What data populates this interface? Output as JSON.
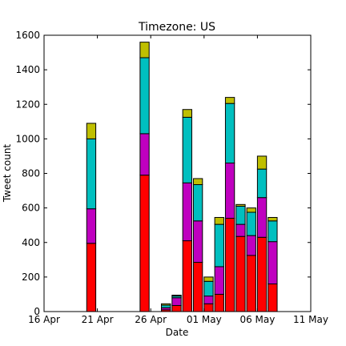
{
  "chart_data": {
    "type": "bar",
    "stacked": true,
    "title": "Timezone: US",
    "xlabel": "Date",
    "ylabel": "Tweet count",
    "ylim": [
      0,
      1600
    ],
    "xlim": [
      "2014-04-16",
      "2014-05-11"
    ],
    "x_ticks": [
      {
        "date": "2014-04-16",
        "label": "16 Apr"
      },
      {
        "date": "2014-04-21",
        "label": "21 Apr"
      },
      {
        "date": "2014-04-26",
        "label": "26 Apr"
      },
      {
        "date": "2014-05-01",
        "label": "01 May"
      },
      {
        "date": "2014-05-06",
        "label": "06 May"
      },
      {
        "date": "2014-05-11",
        "label": "11 May"
      }
    ],
    "y_ticks": [
      0,
      200,
      400,
      600,
      800,
      1000,
      1200,
      1400,
      1600
    ],
    "grid": false,
    "legend": "none",
    "series_colors": [
      "#ff0000",
      "#bf00bf",
      "#00bfbf",
      "#bfbf00"
    ],
    "x": [
      "2014-04-20",
      "2014-04-25",
      "2014-04-27",
      "2014-04-28",
      "2014-04-29",
      "2014-04-30",
      "2014-05-01",
      "2014-05-02",
      "2014-05-03",
      "2014-05-04",
      "2014-05-05",
      "2014-05-06",
      "2014-05-07",
      "2014-05-08",
      "2014-05-10"
    ],
    "series": [
      {
        "values": [
          395,
          790,
          10,
          35,
          410,
          285,
          45,
          100,
          540,
          435,
          325,
          430,
          160,
          0,
          0
        ]
      },
      {
        "values": [
          200,
          240,
          12,
          45,
          335,
          240,
          45,
          160,
          320,
          70,
          115,
          230,
          245,
          0,
          0
        ]
      },
      {
        "values": [
          405,
          440,
          15,
          10,
          380,
          210,
          85,
          245,
          345,
          105,
          135,
          165,
          120,
          0,
          0
        ]
      },
      {
        "values": [
          90,
          90,
          8,
          5,
          45,
          35,
          25,
          40,
          35,
          10,
          25,
          75,
          20,
          0,
          0
        ]
      }
    ]
  }
}
